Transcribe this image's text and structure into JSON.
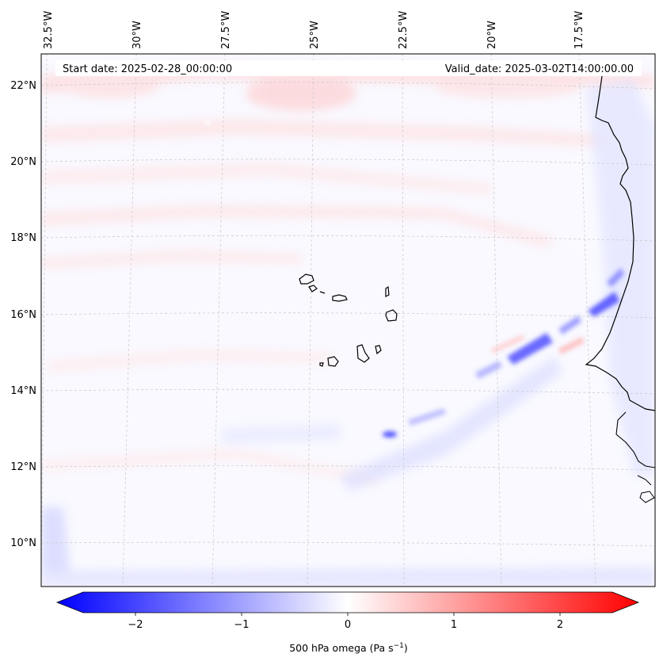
{
  "header": {
    "start_date": "Start date: 2025-02-28_00:00:00",
    "valid_date": "Valid_date: 2025-03-02T14:00:00.00"
  },
  "map": {
    "lon_ticks": [
      "32.5°W",
      "30°W",
      "27.5°W",
      "25°W",
      "22.5°W",
      "20°W",
      "17.5°W"
    ],
    "lat_ticks": [
      "22°N",
      "20°N",
      "18°N",
      "16°N",
      "14°N",
      "12°N",
      "10°N"
    ],
    "field": "500 hPa omega",
    "units": "Pa s-1"
  },
  "colorbar": {
    "ticks": [
      "−2",
      "−1",
      "0",
      "1",
      "2"
    ],
    "tick_values": [
      -2,
      -1,
      0,
      1,
      2
    ],
    "range": [
      -2.6,
      2.6
    ],
    "label_main": "500 hPa omega (Pa s",
    "label_sup": "−1",
    "label_end": ")",
    "colors": {
      "negative": "#0000ff",
      "zero": "#ffffff",
      "positive": "#ff0000"
    }
  }
}
